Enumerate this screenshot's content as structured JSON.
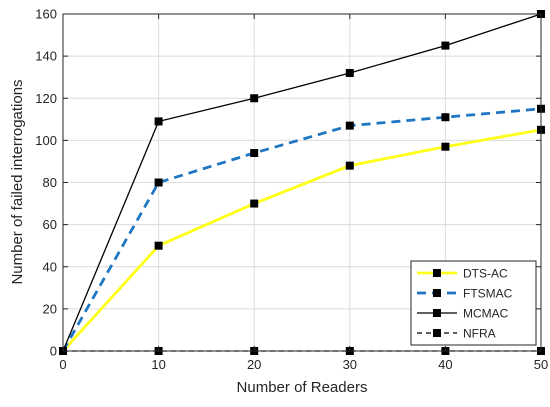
{
  "chart_data": {
    "type": "line",
    "title": "",
    "xlabel": "Number of Readers",
    "ylabel": "Number of failed interrogations",
    "x": [
      0,
      10,
      20,
      30,
      40,
      50
    ],
    "xlim": [
      0,
      50
    ],
    "ylim": [
      0,
      160
    ],
    "xticks": [
      "0",
      "10",
      "20",
      "30",
      "40",
      "50"
    ],
    "yticks": [
      "0",
      "20",
      "40",
      "60",
      "80",
      "100",
      "120",
      "140",
      "160"
    ],
    "grid": true,
    "legend_position": "bottom-right",
    "series": [
      {
        "name": "DTS-AC",
        "values": [
          0,
          50,
          70,
          88,
          97,
          105
        ],
        "color": "#ffff1a",
        "dash": "solid",
        "marker": "square"
      },
      {
        "name": "FTSMAC",
        "values": [
          0,
          80,
          94,
          107,
          111,
          115
        ],
        "color": "#1f77c4",
        "dash": "dashed",
        "marker": "square"
      },
      {
        "name": "MCMAC",
        "values": [
          0,
          109,
          120,
          132,
          145,
          160
        ],
        "color": "#000000",
        "dash": "solid",
        "marker": "square"
      },
      {
        "name": "NFRA",
        "values": [
          0,
          0,
          0,
          0,
          0,
          0
        ],
        "color": "#000000",
        "dash": "dashed",
        "marker": "square"
      }
    ]
  }
}
